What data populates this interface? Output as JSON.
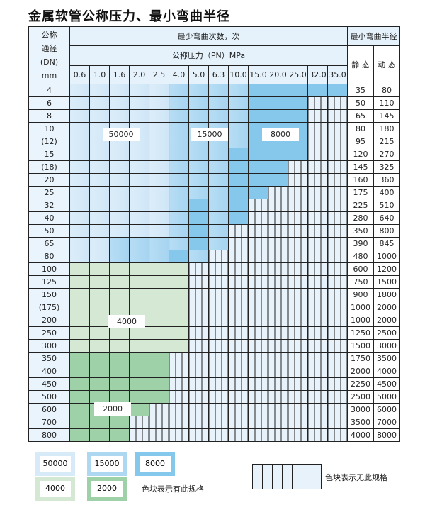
{
  "title": "金属软管公称压力、最小弯曲半径",
  "header": {
    "dn_label": [
      "公称",
      "通径",
      "(DN)",
      "mm"
    ],
    "cycles_label": "最少弯曲次数，次",
    "pressure_label": "公称压力（PN）MPa",
    "radius_label": "最小弯曲半径",
    "static_label": "静 态",
    "dynamic_label": "动 态",
    "pressures": [
      "0.6",
      "1.0",
      "1.6",
      "2.0",
      "2.5",
      "4.0",
      "5.0",
      "6.3",
      "10.0",
      "15.0",
      "20.0",
      "25.0",
      "32.0",
      "35.0"
    ]
  },
  "fill_legend": {
    "a": "50000",
    "b": "15000",
    "c": "8000",
    "g": "4000",
    "h": "2000",
    "n": "none"
  },
  "colors": {
    "a": "#d6eaf8",
    "b": "#aed8f2",
    "c": "#86c7ec",
    "g": "#d4e8d4",
    "h": "#9fd1a9",
    "none": "#e8f2fb"
  },
  "rows": [
    {
      "dn": "4",
      "fills": "aaaaabbbbccccc",
      "static": "35",
      "dynamic": "80"
    },
    {
      "dn": "6",
      "fills": "aaaaabbbbccc--",
      "static": "50",
      "dynamic": "110"
    },
    {
      "dn": "8",
      "fills": "aaaaabbbbccc--",
      "static": "65",
      "dynamic": "145"
    },
    {
      "dn": "10",
      "fills": "aaaaabbbbccc--",
      "static": "80",
      "dynamic": "180"
    },
    {
      "dn": "(12)",
      "fills": "aaaaabbbbccc--",
      "static": "95",
      "dynamic": "215"
    },
    {
      "dn": "15",
      "fills": "aaaaabbbcccc--",
      "static": "120",
      "dynamic": "270"
    },
    {
      "dn": "(18)",
      "fills": "aaaaabbbccc---",
      "static": "145",
      "dynamic": "325"
    },
    {
      "dn": "20",
      "fills": "aaaaabbbccc---",
      "static": "160",
      "dynamic": "360"
    },
    {
      "dn": "25",
      "fills": "aaaaabbbcc----",
      "static": "175",
      "dynamic": "400"
    },
    {
      "dn": "32",
      "fills": "aaaaabcbc-----",
      "static": "225",
      "dynamic": "510"
    },
    {
      "dn": "40",
      "fills": "aaaaabcbc-----",
      "static": "280",
      "dynamic": "640"
    },
    {
      "dn": "50",
      "fills": "aaaaabcb------",
      "static": "350",
      "dynamic": "800"
    },
    {
      "dn": "65",
      "fills": "aabbbbcb------",
      "static": "390",
      "dynamic": "845"
    },
    {
      "dn": "80",
      "fills": "aabbbcb-------",
      "static": "480",
      "dynamic": "1000"
    },
    {
      "dn": "100",
      "fills": "gggggg--------",
      "static": "600",
      "dynamic": "1200"
    },
    {
      "dn": "125",
      "fills": "gggggg--------",
      "static": "750",
      "dynamic": "1500"
    },
    {
      "dn": "150",
      "fills": "gggggg--------",
      "static": "900",
      "dynamic": "1800"
    },
    {
      "dn": "(175)",
      "fills": "gggggg--------",
      "static": "1000",
      "dynamic": "2000"
    },
    {
      "dn": "200",
      "fills": "gggggg--------",
      "static": "1000",
      "dynamic": "2000"
    },
    {
      "dn": "250",
      "fills": "gggggg--------",
      "static": "1250",
      "dynamic": "2500"
    },
    {
      "dn": "300",
      "fills": "gggggg--------",
      "static": "1500",
      "dynamic": "3000"
    },
    {
      "dn": "350",
      "fills": "hhhhh---------",
      "static": "1750",
      "dynamic": "3500"
    },
    {
      "dn": "400",
      "fills": "hhhhh---------",
      "static": "2000",
      "dynamic": "4000"
    },
    {
      "dn": "450",
      "fills": "hhhhh---------",
      "static": "2250",
      "dynamic": "4500"
    },
    {
      "dn": "500",
      "fills": "hhhhh---------",
      "static": "2500",
      "dynamic": "5000"
    },
    {
      "dn": "600",
      "fills": "hhhh----------",
      "static": "3000",
      "dynamic": "6000"
    },
    {
      "dn": "700",
      "fills": "hhh-----------",
      "static": "3500",
      "dynamic": "7000"
    },
    {
      "dn": "800",
      "fills": "hhh-----------",
      "static": "4000",
      "dynamic": "8000"
    }
  ],
  "region_labels": {
    "a": "50000",
    "b": "15000",
    "c": "8000",
    "g": "4000",
    "h": "2000"
  },
  "legend": {
    "items": [
      {
        "key": "a",
        "label": "50000"
      },
      {
        "key": "b",
        "label": "15000"
      },
      {
        "key": "c",
        "label": "8000"
      },
      {
        "key": "g",
        "label": "4000"
      },
      {
        "key": "h",
        "label": "2000"
      }
    ],
    "has_spec_text": "色块表示有此规格",
    "no_spec_text": "色块表示无此规格"
  }
}
